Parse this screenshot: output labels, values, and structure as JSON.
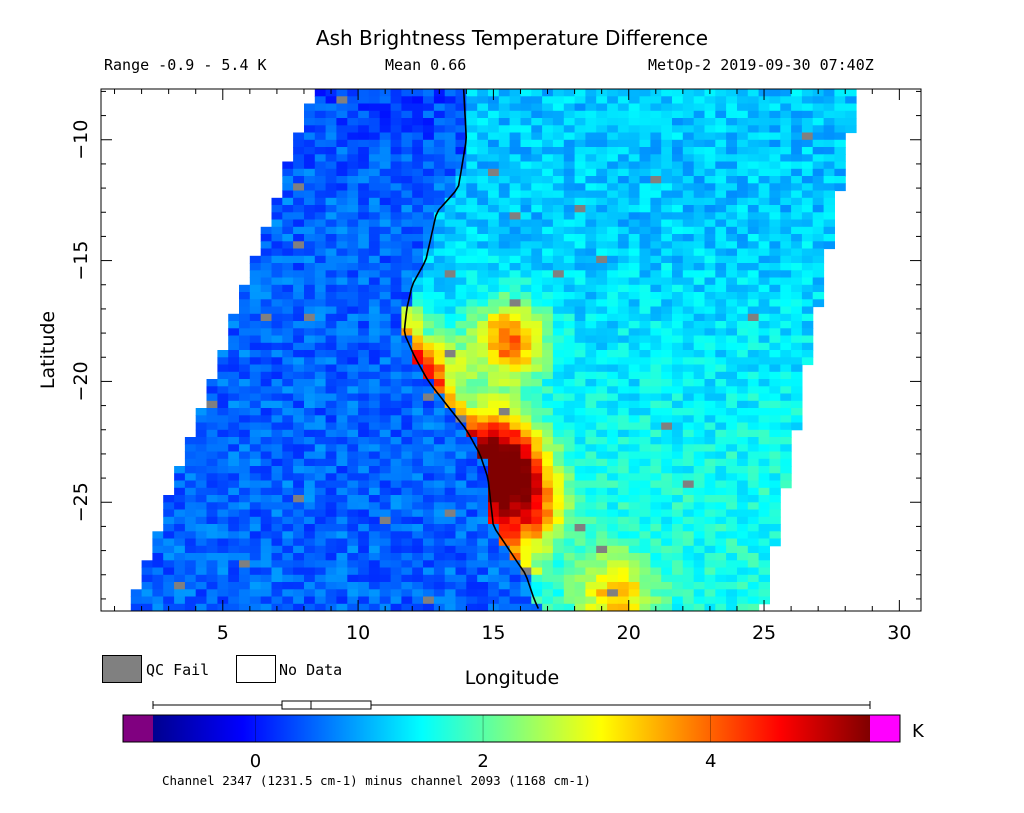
{
  "title": "Ash Brightness Temperature Difference",
  "header": {
    "range": "Range -0.9 - 5.4 K",
    "mean": "Mean 0.66",
    "satellite_time": "MetOp-2 2019-09-30 07:40Z"
  },
  "legend": {
    "qc_fail_label": "QC Fail",
    "no_data_label": "No Data",
    "qc_fail_color": "#808080",
    "no_data_color": "#ffffff"
  },
  "colorbar": {
    "unit": "K",
    "ticks": [
      "0",
      "2",
      "4"
    ],
    "tick_values": [
      0,
      2,
      4
    ],
    "range": [
      -0.9,
      5.4
    ],
    "under_color": "#800080",
    "over_color": "#ff00ff",
    "caption": "Channel 2347 (1231.5 cm-1) minus channel 2093 (1168 cm-1)"
  },
  "chart_data": {
    "type": "heatmap",
    "title": "Ash Brightness Temperature Difference",
    "xlabel": "Longitude",
    "ylabel": "Latitude",
    "xlim": [
      0.5,
      30.8
    ],
    "ylim": [
      -29.5,
      -7.9
    ],
    "xticks": [
      5,
      10,
      15,
      20,
      25,
      30
    ],
    "yticks": [
      -10,
      -15,
      -20,
      -25
    ],
    "xtick_labels": [
      "5",
      "10",
      "15",
      "20",
      "25",
      "30"
    ],
    "ytick_labels": [
      "−10",
      "−15",
      "−20",
      "−25"
    ],
    "value_range": [
      -0.9,
      5.4
    ],
    "mean": 0.66,
    "units": "K",
    "background_value": 0.5,
    "hotspots": [
      {
        "lon": 15.8,
        "lat": -23.8,
        "value": 4.6
      },
      {
        "lon": 15.6,
        "lat": -18.3,
        "value": 4.2
      },
      {
        "lon": 12.6,
        "lat": -19.5,
        "value": 3.6
      },
      {
        "lon": 15.0,
        "lat": -22.3,
        "value": 3.8
      },
      {
        "lon": 19.5,
        "lat": -28.8,
        "value": 3.4
      },
      {
        "lon": 16.2,
        "lat": -25.5,
        "value": 3.9
      }
    ]
  }
}
